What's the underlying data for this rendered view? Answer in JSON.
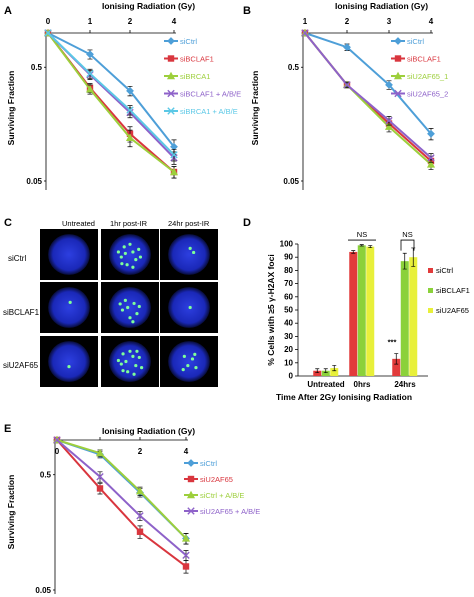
{
  "chart_data": [
    {
      "panel": "A",
      "type": "line",
      "title": "Ionising Radiation (Gy)",
      "ylabel": "Surviving Fraction",
      "x": [
        0,
        1,
        2,
        4
      ],
      "x_ticks": [
        "0",
        "1",
        "2",
        "4"
      ],
      "y_ticks": [
        "0.5",
        "0.05"
      ],
      "yscale": "log",
      "ylim": [
        0.05,
        1
      ],
      "legend_position": "right",
      "series": [
        {
          "name": "siCtrl",
          "color": "#4e9fd8",
          "marker": "diamond",
          "values": [
            1,
            0.65,
            0.31,
            0.1
          ],
          "err": [
            0,
            0.06,
            0.03,
            0.015
          ]
        },
        {
          "name": "siBCLAF1",
          "color": "#d9363e",
          "marker": "square",
          "values": [
            1,
            0.33,
            0.13,
            0.06
          ],
          "err": [
            0,
            0.03,
            0.02,
            0.007
          ]
        },
        {
          "name": "siBRCA1",
          "color": "#9dcf3c",
          "marker": "triangle",
          "values": [
            1,
            0.32,
            0.12,
            0.06
          ],
          "err": [
            0,
            0.03,
            0.02,
            0.007
          ]
        },
        {
          "name": "siBCLAF1 + A/B/E",
          "color": "#8e62c9",
          "marker": "x",
          "values": [
            1,
            0.43,
            0.2,
            0.08
          ],
          "err": [
            0,
            0.04,
            0.02,
            0.01
          ]
        },
        {
          "name": "siBRCA1 + A/B/E",
          "color": "#5bc8e6",
          "marker": "x",
          "values": [
            1,
            0.44,
            0.21,
            0.085
          ],
          "err": [
            0,
            0.04,
            0.02,
            0.01
          ]
        }
      ]
    },
    {
      "panel": "B",
      "type": "line",
      "title": "Ionising Radiation (Gy)",
      "ylabel": "Surviving Fraction",
      "x": [
        1,
        2,
        3,
        4
      ],
      "x_ticks": [
        "1",
        "2",
        "3",
        "4"
      ],
      "y_ticks": [
        "0.5",
        "0.05"
      ],
      "yscale": "log",
      "ylim": [
        0.05,
        1
      ],
      "legend_position": "right",
      "series": [
        {
          "name": "siCtrl",
          "color": "#4e9fd8",
          "marker": "diamond",
          "values": [
            1,
            0.75,
            0.35,
            0.13
          ],
          "err": [
            0,
            0.05,
            0.03,
            0.015
          ]
        },
        {
          "name": "siBCLAF1",
          "color": "#d9363e",
          "marker": "square",
          "values": [
            1,
            0.35,
            0.16,
            0.075
          ],
          "err": [
            0,
            0.02,
            0.015,
            0.007
          ]
        },
        {
          "name": "siU2AF65_1",
          "color": "#9dcf3c",
          "marker": "triangle",
          "values": [
            1,
            0.35,
            0.15,
            0.07
          ],
          "err": [
            0,
            0.02,
            0.015,
            0.007
          ]
        },
        {
          "name": "siU2AF65_2",
          "color": "#8e62c9",
          "marker": "x",
          "values": [
            1,
            0.35,
            0.17,
            0.08
          ],
          "err": [
            0,
            0.02,
            0.015,
            0.007
          ]
        }
      ]
    },
    {
      "panel": "D",
      "type": "bar",
      "ylabel": "% Cells with ≥5 γ-H2AX foci",
      "xlabel": "Time After 2Gy Ionising Radiation",
      "categories": [
        "Untreated",
        "0hrs",
        "24hrs"
      ],
      "y_ticks": [
        "0",
        "10",
        "20",
        "30",
        "40",
        "50",
        "60",
        "70",
        "80",
        "90",
        "100"
      ],
      "ylim": [
        0,
        100
      ],
      "legend_position": "right",
      "annotations": [
        "NS",
        "NS",
        "***"
      ],
      "series": [
        {
          "name": "siCtrl",
          "color": "#e23b3b",
          "values": [
            4,
            94,
            13
          ],
          "err": [
            1.5,
            1,
            4
          ]
        },
        {
          "name": "siBCLAF1",
          "color": "#8bd13a",
          "values": [
            4,
            99,
            87
          ],
          "err": [
            1.5,
            0.5,
            6
          ]
        },
        {
          "name": "siU2AF65",
          "color": "#e8f03a",
          "values": [
            6,
            98,
            90
          ],
          "err": [
            2,
            0.8,
            7
          ]
        }
      ]
    },
    {
      "panel": "E",
      "type": "line",
      "title": "Ionising Radiation (Gy)",
      "ylabel": "Surviving Fraction",
      "x": [
        0,
        1,
        2,
        4
      ],
      "x_ticks": [
        "0",
        "2",
        "4"
      ],
      "y_ticks": [
        "0.5",
        "0.05"
      ],
      "yscale": "log",
      "ylim": [
        0.05,
        1
      ],
      "legend_position": "right",
      "series": [
        {
          "name": "siCtrl",
          "color": "#4e9fd8",
          "marker": "diamond",
          "values": [
            1,
            0.75,
            0.35,
            0.14
          ],
          "err": [
            0,
            0.05,
            0.03,
            0.015
          ]
        },
        {
          "name": "siU2AF65",
          "color": "#d9363e",
          "marker": "square",
          "values": [
            1,
            0.38,
            0.16,
            0.08
          ],
          "err": [
            0,
            0.04,
            0.02,
            0.01
          ]
        },
        {
          "name": "siCtrl + A/B/E",
          "color": "#9dcf3c",
          "marker": "triangle",
          "values": [
            1,
            0.77,
            0.36,
            0.14
          ],
          "err": [
            0,
            0.05,
            0.03,
            0.015
          ]
        },
        {
          "name": "siU2AF65 + A/B/E",
          "color": "#8e62c9",
          "marker": "x",
          "values": [
            1,
            0.48,
            0.22,
            0.1
          ],
          "err": [
            0,
            0.05,
            0.02,
            0.01
          ]
        }
      ]
    }
  ],
  "panel_c": {
    "letter": "C",
    "columns": [
      "Untreated",
      "1hr post-IR",
      "24hr post-IR"
    ],
    "rows": [
      "siCtrl",
      "siBCLAF1",
      "siU2AF65"
    ]
  },
  "panel_letters": {
    "a": "A",
    "b": "B",
    "c": "C",
    "d": "D",
    "e": "E"
  }
}
